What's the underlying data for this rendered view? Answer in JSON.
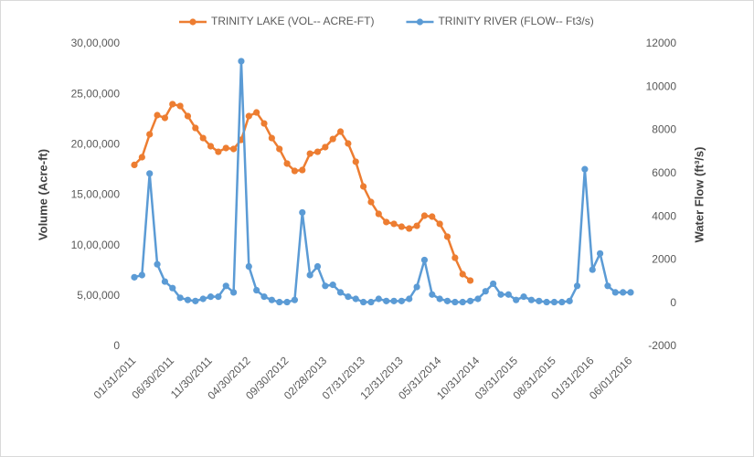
{
  "chart_data": {
    "type": "line",
    "categories": [
      "01/31/2011",
      null,
      null,
      null,
      null,
      "06/30/2011",
      null,
      null,
      null,
      null,
      "11/30/2011",
      null,
      null,
      null,
      null,
      "04/30/2012",
      null,
      null,
      null,
      null,
      "09/30/2012",
      null,
      null,
      null,
      null,
      "02/28/2013",
      null,
      null,
      null,
      null,
      "07/31/2013",
      null,
      null,
      null,
      null,
      "12/31/2013",
      null,
      null,
      null,
      null,
      "05/31/2014",
      null,
      null,
      null,
      null,
      "10/31/2014",
      null,
      null,
      null,
      null,
      "03/31/2015",
      null,
      null,
      null,
      null,
      "08/31/2015",
      null,
      null,
      null,
      null,
      "01/31/2016",
      null,
      null,
      null,
      null,
      "06/01/2016"
    ],
    "series": [
      {
        "name": "TRINITY LAKE (VOL-- ACRE-FT)",
        "color": "#ed7d31",
        "axis": "y",
        "values": [
          1800000,
          1876000,
          2103000,
          2293000,
          2266000,
          2402000,
          2384000,
          2284000,
          2166000,
          2066000,
          1985000,
          1930000,
          1967000,
          1958000,
          2048000,
          2284000,
          2320000,
          2211000,
          2066000,
          1958000,
          1813000,
          1740000,
          1749000,
          1912000,
          1930000,
          1976000,
          2057000,
          2130000,
          2012000,
          1831000,
          1586000,
          1432000,
          1314000,
          1233000,
          1215000,
          1187000,
          1169000,
          1196000,
          1296000,
          1287000,
          1215000,
          1088000,
          879000,
          716000,
          653000,
          null,
          null,
          null,
          null,
          null,
          null,
          null,
          null,
          null,
          null,
          null,
          null,
          null,
          null,
          null,
          null,
          null,
          null,
          null,
          null,
          null
        ]
      },
      {
        "name": "TRINITY RIVER (FLOW-- Ft3/s)",
        "color": "#5b9bd5",
        "axis": "y2",
        "values": [
          1200,
          1300,
          6000,
          1800,
          1000,
          700,
          250,
          150,
          100,
          200,
          300,
          300,
          800,
          500,
          11200,
          1700,
          600,
          300,
          150,
          50,
          50,
          150,
          4200,
          1300,
          1700,
          800,
          850,
          500,
          300,
          200,
          50,
          50,
          200,
          100,
          100,
          100,
          200,
          750,
          2000,
          400,
          200,
          100,
          50,
          50,
          100,
          200,
          550,
          900,
          400,
          400,
          150,
          300,
          150,
          100,
          50,
          50,
          50,
          100,
          800,
          6200,
          1550,
          2300,
          800,
          500,
          500,
          500
        ]
      }
    ],
    "y_label": "Volume (Acre-ft)",
    "y2_label": "Water Flow (ft³/s)",
    "ylim": [
      0,
      3000000
    ],
    "yticks": [
      0,
      {
        "value": 500000,
        "label": "5,00,000"
      },
      {
        "value": 1000000,
        "label": "10,00,000"
      },
      {
        "value": 1500000,
        "label": "15,00,000"
      },
      {
        "value": 2000000,
        "label": "20,00,000"
      },
      {
        "value": 2500000,
        "label": "25,00,000"
      },
      {
        "value": 3000000,
        "label": "30,00,000"
      }
    ],
    "y2lim": [
      -2000,
      12000
    ],
    "y2ticks": [
      -2000,
      0,
      2000,
      4000,
      6000,
      8000,
      10000,
      12000
    ],
    "legend": "top",
    "grid": false
  }
}
